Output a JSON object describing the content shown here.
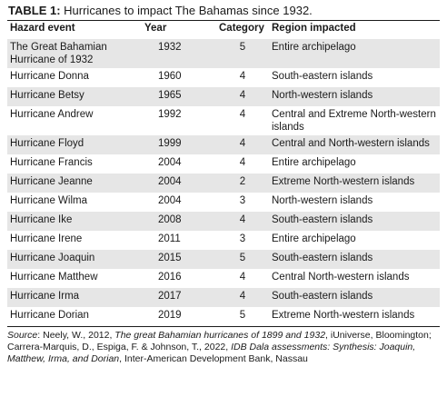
{
  "caption": {
    "label": "TABLE 1:",
    "text": " Hurricanes to impact The Bahamas since 1932."
  },
  "table": {
    "headers": [
      "Hazard event",
      "Year",
      "Category",
      "Region impacted"
    ],
    "rows": [
      {
        "event": "The Great Bahamian Hurricane of 1932",
        "year": "1932",
        "category": "5",
        "region": "Entire archipelago"
      },
      {
        "event": "Hurricane Donna",
        "year": "1960",
        "category": "4",
        "region": "South-eastern islands"
      },
      {
        "event": "Hurricane Betsy",
        "year": "1965",
        "category": "4",
        "region": "North-western islands"
      },
      {
        "event": "Hurricane Andrew",
        "year": "1992",
        "category": "4",
        "region": "Central and Extreme North-western islands"
      },
      {
        "event": "Hurricane Floyd",
        "year": "1999",
        "category": "4",
        "region": "Central and North-western islands"
      },
      {
        "event": "Hurricane Francis",
        "year": "2004",
        "category": "4",
        "region": "Entire archipelago"
      },
      {
        "event": "Hurricane Jeanne",
        "year": "2004",
        "category": "2",
        "region": "Extreme North-western islands"
      },
      {
        "event": "Hurricane Wilma",
        "year": "2004",
        "category": "3",
        "region": "North-western islands"
      },
      {
        "event": "Hurricane Ike",
        "year": "2008",
        "category": "4",
        "region": "South-eastern islands"
      },
      {
        "event": "Hurricane Irene",
        "year": "2011",
        "category": "3",
        "region": "Entire archipelago"
      },
      {
        "event": "Hurricane Joaquin",
        "year": "2015",
        "category": "5",
        "region": "South-eastern islands"
      },
      {
        "event": "Hurricane Matthew",
        "year": "2016",
        "category": "4",
        "region": "Central North-western islands"
      },
      {
        "event": "Hurricane Irma",
        "year": "2017",
        "category": "4",
        "region": "South-eastern islands"
      },
      {
        "event": "Hurricane Dorian",
        "year": "2019",
        "category": "5",
        "region": "Extreme North-western islands"
      }
    ],
    "shade_color": "#e6e6e6"
  },
  "source": {
    "label": "Source",
    "part1": ": Neely, W., 2012, ",
    "title1": "The great Bahamian hurricanes of 1899 and 1932",
    "part2": ", iUniverse, Bloomington; Carrera-Marquis, D., Espiga, F. & Johnson, T., 2022, ",
    "title2": "IDB Dala assessments: Synthesis: Joaquin, Matthew, Irma, and Dorian",
    "part3": ", Inter-American Development Bank, Nassau"
  }
}
